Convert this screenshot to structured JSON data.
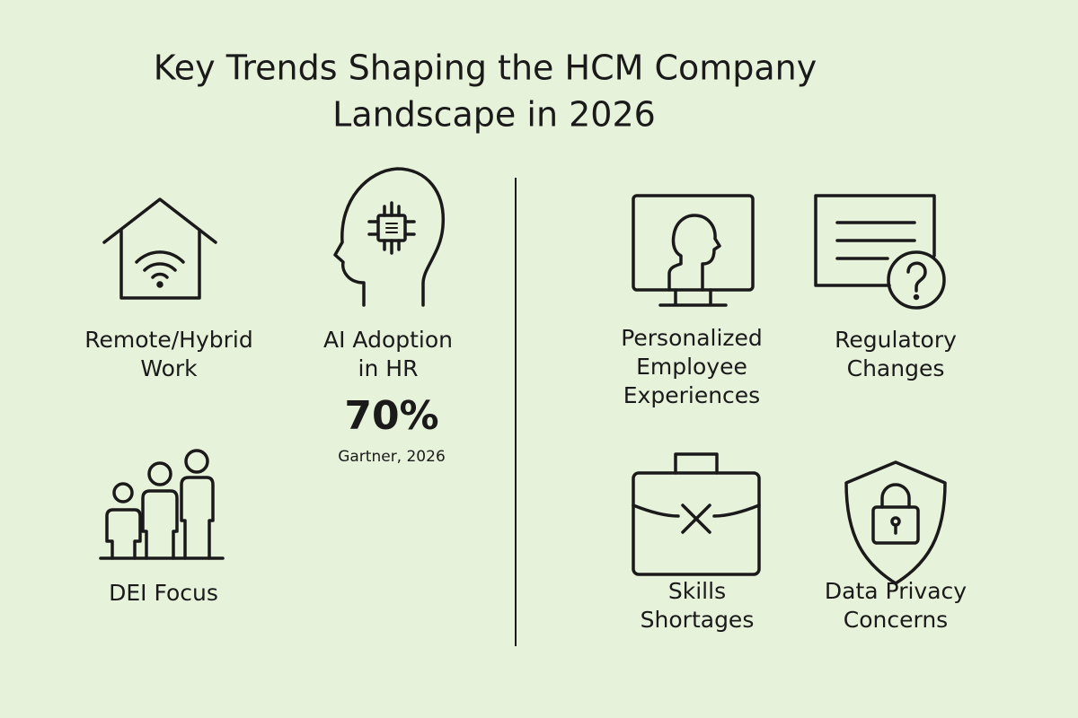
{
  "title": [
    "Key Trends Shaping the HCM Company",
    "Landscape in 2026"
  ],
  "items": [
    {
      "label": [
        "Remote/Hybrid",
        "Work"
      ]
    },
    {
      "label": [
        "AI Adoption",
        "in HR"
      ],
      "stat": "70%",
      "source": "Gartner, 2026"
    },
    {
      "label": [
        "DEI Focus"
      ]
    },
    {
      "label": [
        "Personalized",
        "Employee",
        "Experiences"
      ]
    },
    {
      "label": [
        "Regulatory",
        "Changes"
      ]
    },
    {
      "label": [
        "Skills",
        "Shortages"
      ]
    },
    {
      "label": [
        "Data Privacy",
        "Concerns"
      ]
    }
  ]
}
